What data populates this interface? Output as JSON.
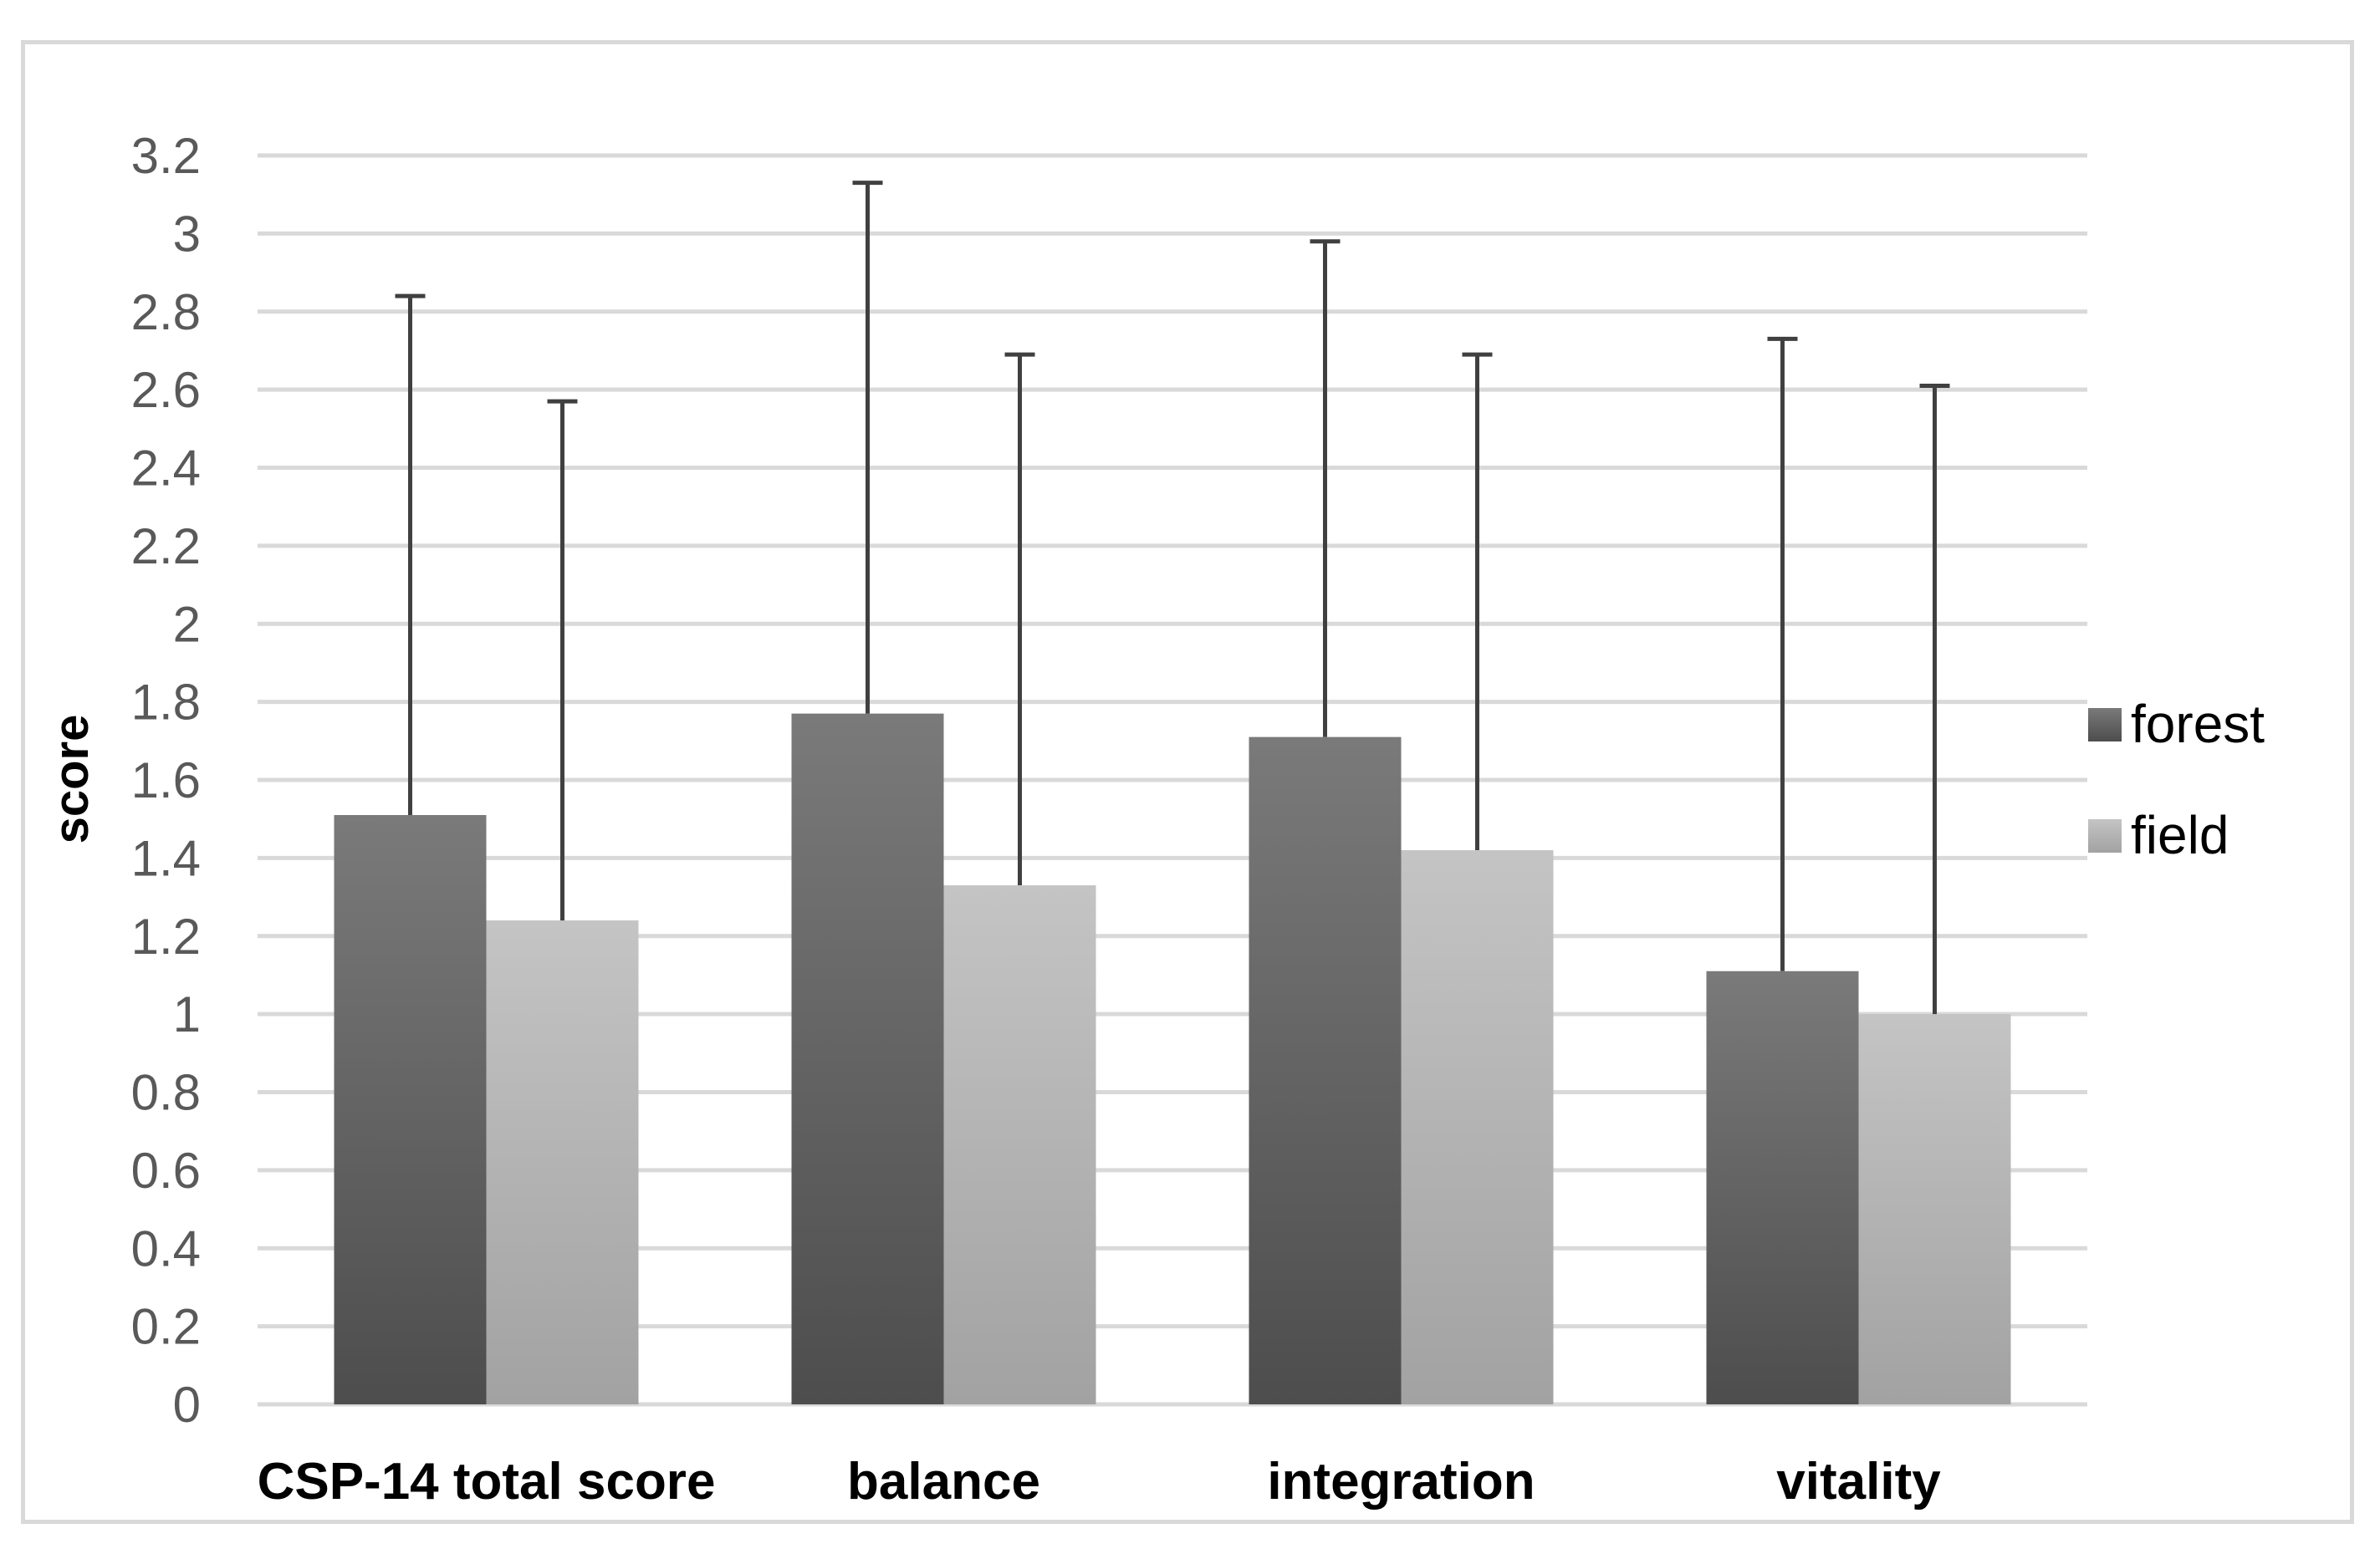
{
  "chart_data": {
    "type": "bar",
    "title": "",
    "xlabel": "",
    "ylabel": "score",
    "ylim": [
      0,
      3.2
    ],
    "yticks": [
      "0",
      "0.2",
      "0.4",
      "0.6",
      "0.8",
      "1",
      "1.2",
      "1.4",
      "1.6",
      "1.8",
      "2",
      "2.2",
      "2.4",
      "2.6",
      "2.8",
      "3",
      "3.2"
    ],
    "categories": [
      "CSP-14 total score",
      "balance",
      "integration",
      "vitality"
    ],
    "series": [
      {
        "name": "forest",
        "values": [
          1.51,
          1.77,
          1.71,
          1.11
        ],
        "error_upper": [
          2.84,
          3.13,
          2.98,
          2.73
        ],
        "color_top": "#7a7a7a",
        "color_bottom": "#4d4d4d"
      },
      {
        "name": "field",
        "values": [
          1.24,
          1.33,
          1.42,
          1.0
        ],
        "error_upper": [
          2.57,
          2.69,
          2.69,
          2.61
        ],
        "color_top": "#c4c4c4",
        "color_bottom": "#a2a2a2"
      }
    ],
    "grid": true,
    "legend_position": "right",
    "gridline_color": "#d9d9d9",
    "error_bar_color": "#404040"
  }
}
